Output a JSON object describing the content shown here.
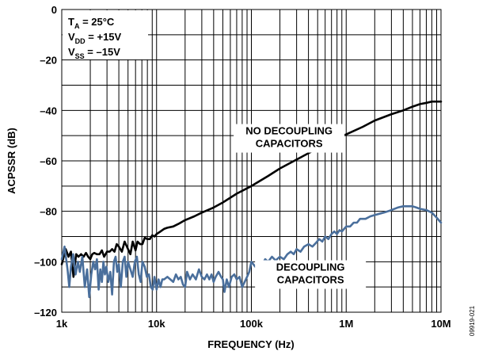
{
  "chart_data": {
    "type": "line",
    "xscale": "log",
    "xlim": [
      1000,
      10000000
    ],
    "ylim": [
      -120,
      0
    ],
    "xlabel": "FREQUENCY (Hz)",
    "ylabel": "ACPSSR (dB)",
    "grid": true,
    "x_ticks": [
      {
        "value": 1000,
        "label": "1k"
      },
      {
        "value": 10000,
        "label": "10k"
      },
      {
        "value": 100000,
        "label": "100k"
      },
      {
        "value": 1000000,
        "label": "1M"
      },
      {
        "value": 10000000,
        "label": "10M"
      }
    ],
    "y_ticks": [
      {
        "value": 0,
        "label": "0"
      },
      {
        "value": -20,
        "label": "–20"
      },
      {
        "value": -40,
        "label": "–40"
      },
      {
        "value": -60,
        "label": "–60"
      },
      {
        "value": -80,
        "label": "–80"
      },
      {
        "value": -100,
        "label": "–100"
      },
      {
        "value": -120,
        "label": "–120"
      }
    ],
    "conditions": [
      {
        "main": "T",
        "sub": "A",
        "rest": " = 25°C"
      },
      {
        "main": "V",
        "sub": "DD",
        "rest": " = +15V"
      },
      {
        "main": "V",
        "sub": "SS",
        "rest": " = –15V"
      }
    ],
    "series": [
      {
        "name": "NO DECOUPLING CAPACITORS",
        "color": "#000000",
        "points": [
          [
            1000,
            -101
          ],
          [
            1100,
            -95
          ],
          [
            1180,
            -98
          ],
          [
            1250,
            -96
          ],
          [
            1330,
            -106
          ],
          [
            1420,
            -97
          ],
          [
            1500,
            -98
          ],
          [
            1600,
            -97
          ],
          [
            1700,
            -98
          ],
          [
            1800,
            -96.5
          ],
          [
            1900,
            -98
          ],
          [
            2000,
            -99
          ],
          [
            2100,
            -97
          ],
          [
            2200,
            -96.5
          ],
          [
            2350,
            -97
          ],
          [
            2500,
            -97
          ],
          [
            2650,
            -95.5
          ],
          [
            2800,
            -98
          ],
          [
            3000,
            -96
          ],
          [
            3200,
            -96
          ],
          [
            3400,
            -95
          ],
          [
            3600,
            -96
          ],
          [
            3800,
            -93
          ],
          [
            4000,
            -94
          ],
          [
            4300,
            -96
          ],
          [
            4600,
            -92
          ],
          [
            5000,
            -95
          ],
          [
            5300,
            -97
          ],
          [
            5600,
            -92
          ],
          [
            6000,
            -95.5
          ],
          [
            6300,
            -92
          ],
          [
            6700,
            -93
          ],
          [
            7100,
            -93
          ],
          [
            7500,
            -90.5
          ],
          [
            8000,
            -91
          ],
          [
            8500,
            -91
          ],
          [
            9000,
            -89.5
          ],
          [
            9500,
            -90
          ],
          [
            10000,
            -89
          ],
          [
            11000,
            -88
          ],
          [
            12000,
            -87
          ],
          [
            13000,
            -86.5
          ],
          [
            15000,
            -86
          ],
          [
            17000,
            -85
          ],
          [
            20000,
            -83.5
          ],
          [
            25000,
            -82
          ],
          [
            30000,
            -80.5
          ],
          [
            40000,
            -78.5
          ],
          [
            50000,
            -76.5
          ],
          [
            70000,
            -73
          ],
          [
            100000,
            -70
          ],
          [
            150000,
            -66
          ],
          [
            200000,
            -63
          ],
          [
            300000,
            -59.5
          ],
          [
            500000,
            -55
          ],
          [
            700000,
            -52
          ],
          [
            1000000,
            -49.5
          ],
          [
            1500000,
            -46.5
          ],
          [
            2000000,
            -44
          ],
          [
            3000000,
            -41.5
          ],
          [
            4000000,
            -40
          ],
          [
            5000000,
            -38.5
          ],
          [
            6000000,
            -37.5
          ],
          [
            7000000,
            -37
          ],
          [
            8000000,
            -36.5
          ],
          [
            10000000,
            -36.5
          ]
        ]
      },
      {
        "name": "DECOUPLING CAPACITORS",
        "color": "#4a6f9c",
        "points": [
          [
            1000,
            -99
          ],
          [
            1070,
            -94
          ],
          [
            1150,
            -103
          ],
          [
            1200,
            -110
          ],
          [
            1250,
            -102
          ],
          [
            1320,
            -97
          ],
          [
            1400,
            -105
          ],
          [
            1480,
            -100
          ],
          [
            1550,
            -104
          ],
          [
            1650,
            -98
          ],
          [
            1750,
            -110
          ],
          [
            1850,
            -103
          ],
          [
            1950,
            -114
          ],
          [
            2050,
            -105
          ],
          [
            2150,
            -100
          ],
          [
            2250,
            -103
          ],
          [
            2350,
            -99
          ],
          [
            2450,
            -111
          ],
          [
            2550,
            -103
          ],
          [
            2650,
            -108
          ],
          [
            2750,
            -100
          ],
          [
            2850,
            -105
          ],
          [
            2950,
            -102
          ],
          [
            3100,
            -108
          ],
          [
            3250,
            -104
          ],
          [
            3400,
            -113
          ],
          [
            3550,
            -100
          ],
          [
            3700,
            -98
          ],
          [
            3850,
            -104
          ],
          [
            4000,
            -101
          ],
          [
            4200,
            -110
          ],
          [
            4400,
            -100
          ],
          [
            4600,
            -98
          ],
          [
            4800,
            -106
          ],
          [
            5000,
            -100
          ],
          [
            5300,
            -103
          ],
          [
            5600,
            -106
          ],
          [
            5900,
            -100
          ],
          [
            6200,
            -98
          ],
          [
            6500,
            -105
          ],
          [
            6800,
            -108
          ],
          [
            7100,
            -100
          ],
          [
            7500,
            -102
          ],
          [
            7900,
            -106
          ],
          [
            8300,
            -105
          ],
          [
            8700,
            -110
          ],
          [
            9100,
            -111
          ],
          [
            9500,
            -106
          ],
          [
            10000,
            -111
          ],
          [
            10500,
            -107
          ],
          [
            11000,
            -110
          ],
          [
            11500,
            -107
          ],
          [
            12000,
            -107
          ],
          [
            13000,
            -106
          ],
          [
            14000,
            -107
          ],
          [
            15000,
            -108
          ],
          [
            16000,
            -105
          ],
          [
            17000,
            -107
          ],
          [
            18000,
            -106
          ],
          [
            19000,
            -109
          ],
          [
            20000,
            -110
          ],
          [
            21000,
            -104
          ],
          [
            22500,
            -107
          ],
          [
            24000,
            -105
          ],
          [
            26000,
            -107
          ],
          [
            28000,
            -103
          ],
          [
            30000,
            -106
          ],
          [
            32000,
            -107
          ],
          [
            34000,
            -105
          ],
          [
            36000,
            -107
          ],
          [
            38000,
            -105
          ],
          [
            40000,
            -108
          ],
          [
            42000,
            -106
          ],
          [
            45000,
            -104
          ],
          [
            48000,
            -106
          ],
          [
            50000,
            -107
          ],
          [
            52000,
            -112
          ],
          [
            55000,
            -107
          ],
          [
            58000,
            -110
          ],
          [
            62000,
            -106
          ],
          [
            66000,
            -105
          ],
          [
            70000,
            -107
          ],
          [
            75000,
            -106
          ],
          [
            80000,
            -110
          ],
          [
            85000,
            -108
          ],
          [
            90000,
            -106
          ],
          [
            95000,
            -104
          ],
          [
            100000,
            -100
          ],
          [
            110000,
            -102
          ],
          [
            120000,
            -100
          ],
          [
            130000,
            -101
          ],
          [
            140000,
            -99
          ],
          [
            150000,
            -100
          ],
          [
            165000,
            -98
          ],
          [
            180000,
            -99.5
          ],
          [
            200000,
            -98
          ],
          [
            220000,
            -99
          ],
          [
            240000,
            -97
          ],
          [
            260000,
            -96
          ],
          [
            280000,
            -97
          ],
          [
            300000,
            -95
          ],
          [
            330000,
            -96
          ],
          [
            360000,
            -94
          ],
          [
            400000,
            -93
          ],
          [
            440000,
            -94
          ],
          [
            480000,
            -92.5
          ],
          [
            520000,
            -91
          ],
          [
            560000,
            -92
          ],
          [
            600000,
            -90
          ],
          [
            650000,
            -91
          ],
          [
            700000,
            -89
          ],
          [
            750000,
            -88
          ],
          [
            800000,
            -89
          ],
          [
            850000,
            -87.5
          ],
          [
            900000,
            -88
          ],
          [
            950000,
            -87
          ],
          [
            1000000,
            -86
          ],
          [
            1100000,
            -86
          ],
          [
            1200000,
            -84.5
          ],
          [
            1300000,
            -84.5
          ],
          [
            1400000,
            -83
          ],
          [
            1600000,
            -83
          ],
          [
            1800000,
            -82
          ],
          [
            2000000,
            -81.5
          ],
          [
            2500000,
            -80.5
          ],
          [
            3000000,
            -79.5
          ],
          [
            3500000,
            -78.5
          ],
          [
            4000000,
            -78
          ],
          [
            4500000,
            -78
          ],
          [
            5000000,
            -78
          ],
          [
            5500000,
            -78.5
          ],
          [
            6000000,
            -79
          ],
          [
            7000000,
            -79.5
          ],
          [
            8000000,
            -80.5
          ],
          [
            9000000,
            -82.5
          ],
          [
            10000000,
            -84.5
          ]
        ]
      }
    ],
    "annotations": [
      {
        "lines": [
          "NO DECOUPLING",
          "CAPACITORS"
        ],
        "x": 250000,
        "y": -49.5
      },
      {
        "lines": [
          "DECOUPLING",
          "CAPACITORS"
        ],
        "x": 420000,
        "y": -103.5
      }
    ],
    "figure_id": "09919-021"
  }
}
